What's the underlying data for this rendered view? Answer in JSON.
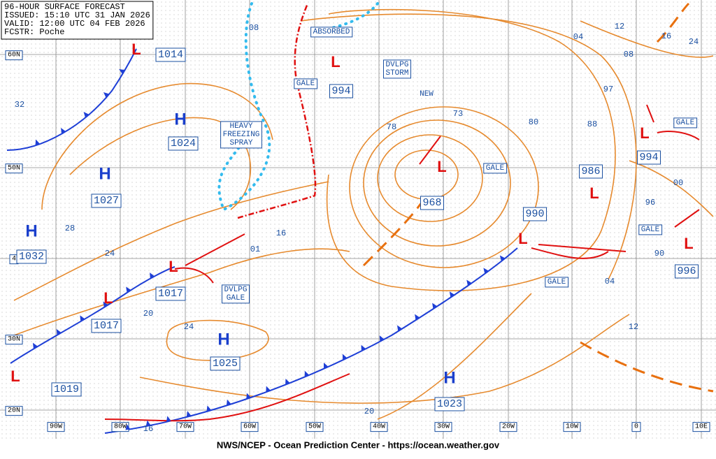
{
  "header": {
    "lines": [
      "96-HOUR SURFACE FORECAST",
      "ISSUED: 15:10 UTC 31 JAN 2026",
      "VALID: 12:00 UTC 04 FEB 2026",
      "FCSTR: Poche"
    ]
  },
  "footer": "NWS/NCEP - Ocean Prediction Center - https://ocean.weather.gov",
  "lat_labels": [
    "60N",
    "50N",
    "4",
    "30N",
    "20N"
  ],
  "lon_labels": [
    "90W",
    "80W",
    "70W",
    "60W",
    "50W",
    "40W",
    "30W",
    "20W",
    "10W",
    "0",
    "10E"
  ],
  "highs": [
    {
      "symbol": "H",
      "pressure": "1024"
    },
    {
      "symbol": "H",
      "pressure": "1027"
    },
    {
      "symbol": "H",
      "pressure": "1032"
    },
    {
      "symbol": "H",
      "pressure": "1025"
    },
    {
      "symbol": "H",
      "pressure": "1023"
    }
  ],
  "lows": [
    {
      "symbol": "L",
      "pressure": "968"
    },
    {
      "symbol": "L",
      "pressure": "1014"
    },
    {
      "symbol": "L",
      "pressure": "1017"
    },
    {
      "symbol": "L",
      "pressure": "1017"
    },
    {
      "symbol": "L",
      "pressure": "1019"
    },
    {
      "symbol": "L",
      "pressure": "994"
    },
    {
      "symbol": "L",
      "pressure": "986"
    },
    {
      "symbol": "L",
      "pressure": "990"
    },
    {
      "symbol": "L",
      "pressure": "994"
    },
    {
      "symbol": "L",
      "pressure": "996"
    }
  ],
  "annotations": [
    [
      "GALE"
    ],
    [
      "HEAVY",
      "FREEZING",
      "SPRAY"
    ],
    [
      "ABSORBED"
    ],
    [
      "DVLPG",
      "STORM"
    ],
    [
      "NEW"
    ],
    [
      "GALE"
    ],
    [
      "DVLPG",
      "GALE"
    ],
    [
      "GALE"
    ],
    [
      "GALE"
    ],
    [
      "GALE"
    ]
  ],
  "isobar_labels": [
    "08",
    "12",
    "16",
    "24",
    "04",
    "08",
    "32",
    "28",
    "24",
    "20",
    "24",
    "16",
    "01",
    "73",
    "78",
    "80",
    "88",
    "97",
    "96",
    "00",
    "04",
    "12",
    "20",
    "16",
    "90"
  ]
}
